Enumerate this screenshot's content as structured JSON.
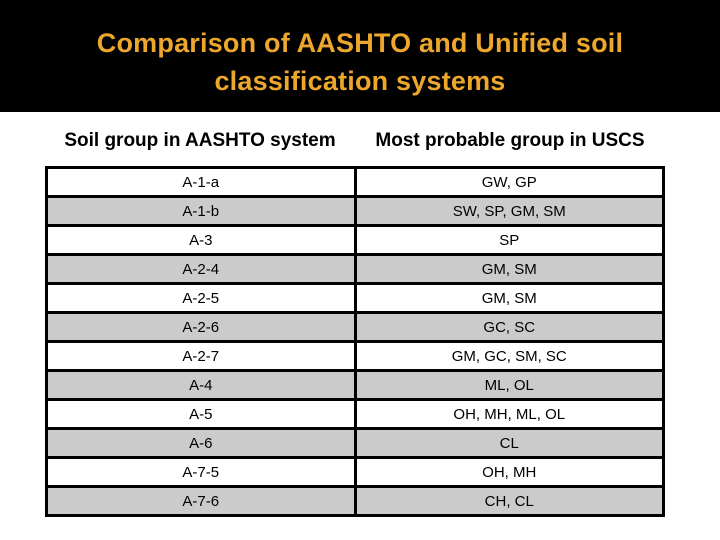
{
  "slide": {
    "title_line1": "Comparison of AASHTO and Unified soil",
    "title_line2": "classification systems"
  },
  "colors": {
    "bar_bg": "#000000",
    "title_gold": "#ECA72C",
    "row_alt": "#CBCBCB",
    "border_col": "#000000",
    "text_col": "#000000"
  },
  "table": {
    "columns": [
      "Soil group in AASHTO system",
      "Most probable group in USCS"
    ],
    "rows": [
      {
        "aashto": "A-1-a",
        "uscs": "GW, GP"
      },
      {
        "aashto": "A-1-b",
        "uscs": "SW, SP, GM, SM"
      },
      {
        "aashto": "A-3",
        "uscs": "SP"
      },
      {
        "aashto": "A-2-4",
        "uscs": "GM, SM"
      },
      {
        "aashto": "A-2-5",
        "uscs": "GM, SM"
      },
      {
        "aashto": "A-2-6",
        "uscs": "GC, SC"
      },
      {
        "aashto": "A-2-7",
        "uscs": "GM, GC, SM, SC"
      },
      {
        "aashto": "A-4",
        "uscs": "ML, OL"
      },
      {
        "aashto": "A-5",
        "uscs": "OH, MH, ML, OL"
      },
      {
        "aashto": "A-6",
        "uscs": "CL"
      },
      {
        "aashto": "A-7-5",
        "uscs": "OH, MH"
      },
      {
        "aashto": "A-7-6",
        "uscs": "CH, CL"
      }
    ]
  }
}
